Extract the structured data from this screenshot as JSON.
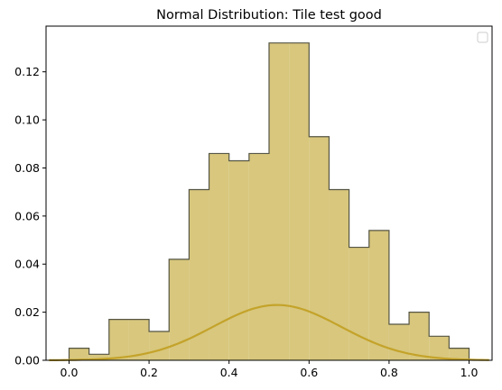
{
  "chart_data": {
    "type": "histogram",
    "title": "Normal Distribution: Tile test good",
    "xlabel": "",
    "ylabel": "",
    "xlim": [
      -0.0575,
      1.0575
    ],
    "ylim": [
      0,
      0.139
    ],
    "x_ticks": [
      "0.0",
      "0.2",
      "0.4",
      "0.6",
      "0.8",
      "1.0"
    ],
    "y_ticks": [
      "0.00",
      "0.02",
      "0.04",
      "0.06",
      "0.08",
      "0.10",
      "0.12"
    ],
    "bin_edges": [
      0.0,
      0.05,
      0.1,
      0.15,
      0.2,
      0.25,
      0.3,
      0.35,
      0.4,
      0.45,
      0.5,
      0.55,
      0.6,
      0.65,
      0.7,
      0.75,
      0.8,
      0.85,
      0.9,
      0.95,
      1.0
    ],
    "values": [
      0.005,
      0.0025,
      0.017,
      0.017,
      0.012,
      0.042,
      0.071,
      0.086,
      0.083,
      0.086,
      0.132,
      0.132,
      0.093,
      0.071,
      0.047,
      0.054,
      0.015,
      0.02,
      0.01,
      0.005
    ],
    "curve": {
      "x_range": [
        -0.05,
        1.05
      ],
      "peak": 0.023,
      "mean": 0.52,
      "std": 0.16
    },
    "legend": "top-right",
    "grid": false,
    "colors": {
      "fill": "#d8c77d",
      "edge": "#555544",
      "curve": "#c4a32a"
    }
  }
}
